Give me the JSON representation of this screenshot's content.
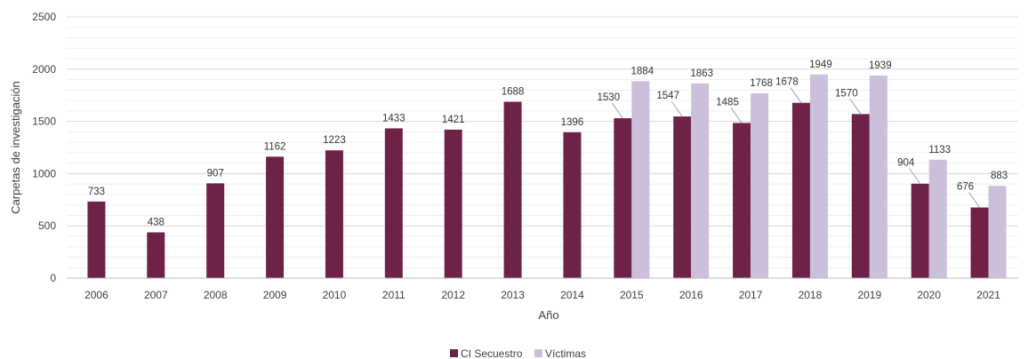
{
  "chart_data": {
    "type": "bar",
    "title": "",
    "xlabel": "Año",
    "ylabel": "Carpetas de investigación",
    "ylim": [
      0,
      2500
    ],
    "yticks": [
      0,
      500,
      1000,
      1500,
      2000,
      2500
    ],
    "grid": true,
    "legend_position": "bottom",
    "categories": [
      "2006",
      "2007",
      "2008",
      "2009",
      "2010",
      "2011",
      "2012",
      "2013",
      "2014",
      "2015",
      "2016",
      "2017",
      "2018",
      "2019",
      "2020",
      "2021"
    ],
    "series": [
      {
        "name": "CI Secuestro",
        "color": "#6f2247",
        "values": [
          733,
          438,
          907,
          1162,
          1223,
          1433,
          1421,
          1688,
          1396,
          1530,
          1547,
          1485,
          1678,
          1570,
          904,
          676
        ]
      },
      {
        "name": "Víctimas",
        "color": "#cbbfdb",
        "values": [
          null,
          null,
          null,
          null,
          null,
          null,
          null,
          null,
          null,
          1884,
          1863,
          1768,
          1949,
          1939,
          1133,
          883
        ]
      }
    ]
  }
}
